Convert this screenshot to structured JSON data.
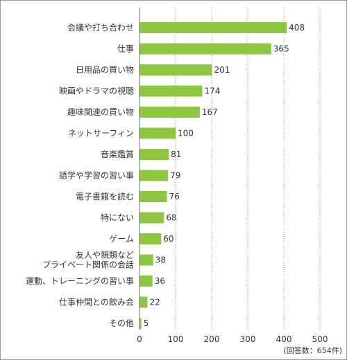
{
  "chart_data": {
    "type": "bar",
    "orientation": "horizontal",
    "categories": [
      [
        "会議や打ち合わせ"
      ],
      [
        "仕事"
      ],
      [
        "日用品の買い物"
      ],
      [
        "映画やドラマの視聴"
      ],
      [
        "趣味関連の買い物"
      ],
      [
        "ネットサーフィン"
      ],
      [
        "音楽鑑賞"
      ],
      [
        "語学や学習の習い事"
      ],
      [
        "電子書籍を読む"
      ],
      [
        "特にない"
      ],
      [
        "ゲーム"
      ],
      [
        "友人や親類など",
        "プライベート関係の会話"
      ],
      [
        "運動、トレーニングの習い事"
      ],
      [
        "仕事仲間との飲み会"
      ],
      [
        "その他"
      ]
    ],
    "values": [
      408,
      365,
      201,
      174,
      167,
      100,
      81,
      79,
      76,
      68,
      60,
      38,
      36,
      22,
      5
    ],
    "xlim": [
      0,
      500
    ],
    "xticks": [
      0,
      100,
      200,
      300,
      400,
      500
    ],
    "grid": "vertical-dotted",
    "bar_color": "#8dc63f",
    "note": "(回答数：654件)"
  }
}
